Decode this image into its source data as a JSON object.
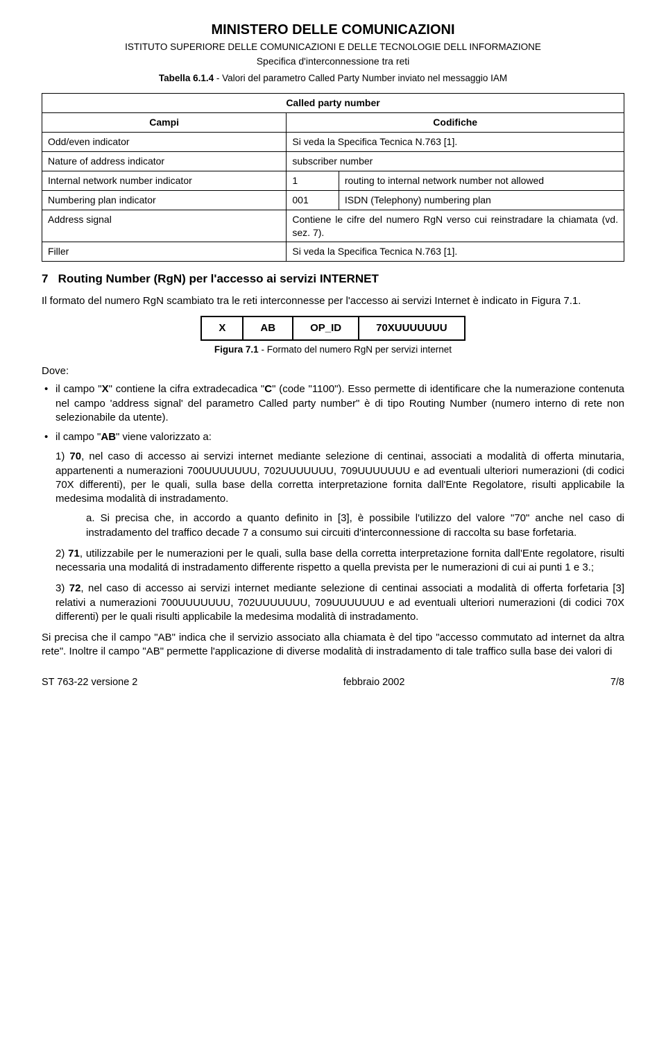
{
  "header": {
    "mainTitle": "MINISTERO DELLE COMUNICAZIONI",
    "subtitle1": "ISTITUTO SUPERIORE DELLE COMUNICAZIONI E DELLE TECNOLOGIE DELL INFORMAZIONE",
    "subtitle2": "Specifica d'interconnessione tra reti",
    "tableCaption": "Tabella 6.1.4 - Valori del parametro Called Party Number inviato nel messaggio IAM"
  },
  "table": {
    "title": "Called party number",
    "colCampi": "Campi",
    "colCodifiche": "Codifiche",
    "rows": [
      {
        "label": "Odd/even indicator",
        "code": "",
        "desc": "Si veda la Specifica Tecnica N.763 [1]."
      },
      {
        "label": "Nature of address indicator",
        "code": "",
        "desc": "subscriber number"
      },
      {
        "label": "Internal network number indicator",
        "code": "1",
        "desc": "routing to internal network number not allowed"
      },
      {
        "label": "Numbering plan indicator",
        "code": "001",
        "desc": "ISDN (Telephony) numbering plan"
      },
      {
        "label": "Address signal",
        "code": "",
        "desc": "Contiene le cifre del numero RgN verso cui reinstradare la chiamata (vd. sez. 7)."
      },
      {
        "label": "Filler",
        "code": "",
        "desc": "Si veda la Specifica Tecnica N.763 [1]."
      }
    ]
  },
  "section": {
    "number": "7",
    "title": "Routing Number (RgN) per l'accesso ai servizi INTERNET",
    "intro": "Il formato del numero RgN scambiato tra le reti interconnesse per l'accesso ai servizi Internet è indicato in Figura 7.1."
  },
  "rgn": {
    "cells": [
      "X",
      "AB",
      "OP_ID",
      "70XUUUUUUU"
    ],
    "caption": "Figura 7.1 - Formato del numero RgN per servizi internet"
  },
  "dove": "Dove:",
  "bullet1_pre": "il campo \"",
  "bullet1_x": "X",
  "bullet1_mid": "\" contiene la cifra extradecadica \"",
  "bullet1_c": "C",
  "bullet1_post": "\" (code \"1100\"). Esso permette di identificare che la numerazione contenuta nel campo 'address signal' del parametro Called party number\" è di tipo Routing Number (numero interno di rete non selezionabile da utente).",
  "bullet2_pre": "il campo \"",
  "bullet2_ab": "AB",
  "bullet2_post": "\" viene valorizzato a:",
  "items": {
    "i1_num": "1) ",
    "i1_b1": "70",
    "i1_text": ", nel caso di accesso ai servizi internet mediante selezione di centinai, associati a modalità di offerta minutaria, appartenenti a numerazioni 700UUUUUUU, 702UUUUUUU, 709UUUUUUU e ad eventuali ulteriori numerazioni (di codici 70X differenti), per le quali, sulla base della corretta interpretazione fornita dall'Ente Regolatore, risulti applicabile la medesima modalità di instradamento.",
    "ia_lbl": "a. ",
    "ia_text": "Si precisa che, in accordo a quanto definito in [3], è possibile l'utilizzo del valore \"70\" anche nel caso di instradamento del traffico decade 7 a consumo sui circuiti d'interconnessione di raccolta su base forfetaria.",
    "i2_num": "2) ",
    "i2_b1": "71",
    "i2_text": ", utilizzabile per le numerazioni per le quali, sulla base della corretta interpretazione fornita dall'Ente regolatore, risulti necessaria una modalitá di instradamento differente rispetto a quella prevista per le numerazioni di cui ai punti 1 e 3.;",
    "i3_num": "3) ",
    "i3_b1": "72",
    "i3_text": ", nel caso di accesso ai servizi internet mediante selezione di centinai associati a modalità di offerta forfetaria [3] relativi a numerazioni 700UUUUUUU, 702UUUUUUU, 709UUUUUUU e ad eventuali ulteriori numerazioni (di codici 70X differenti) per le quali risulti applicabile la medesima modalità di instradamento."
  },
  "closing": "Si precisa che il campo \"AB\" indica che il servizio associato alla chiamata è del tipo \"accesso commutato ad internet da altra rete\". Inoltre il campo \"AB\" permette l'applicazione di diverse modalità di instradamento di tale traffico sulla base dei valori di",
  "footer": {
    "left": "ST 763-22 versione 2",
    "center": "febbraio 2002",
    "right": "7/8"
  }
}
